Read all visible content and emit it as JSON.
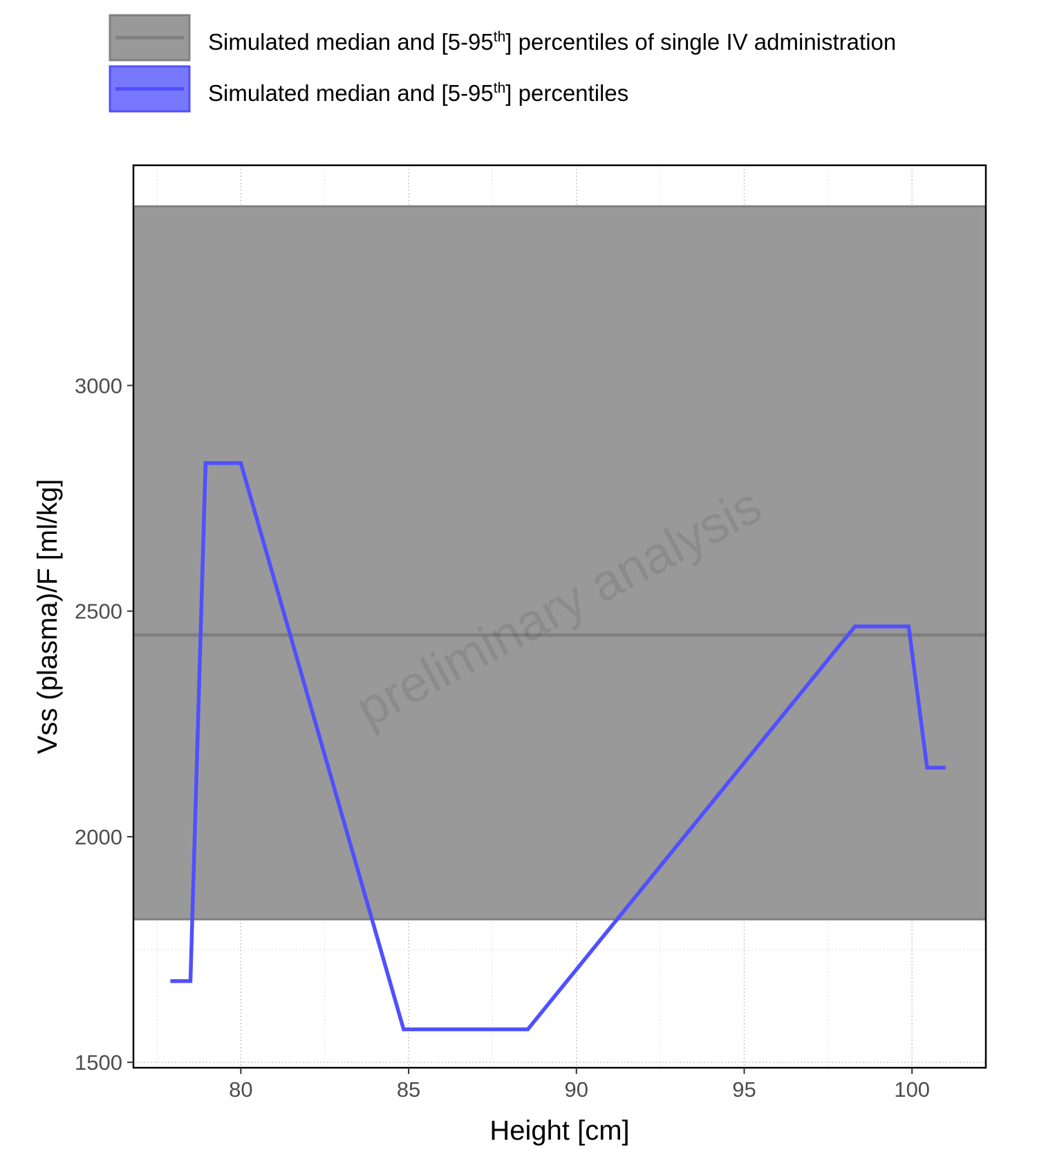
{
  "chart_data": {
    "type": "line",
    "xlabel": "Height [cm]",
    "ylabel": "Vss (plasma)/F [ml/kg]",
    "xlim": [
      76.8,
      102.2
    ],
    "ylim": [
      1488,
      3488
    ],
    "x_ticks": [
      80,
      85,
      90,
      95,
      100
    ],
    "y_ticks": [
      1500,
      2000,
      2500,
      3000
    ],
    "x_minor_ticks": [
      77.5,
      82.5,
      87.5,
      92.5,
      97.5
    ],
    "y_minor_ticks": [
      1750,
      2250,
      2750,
      3250
    ],
    "grid": true,
    "watermark": "preliminary analysis",
    "legend": {
      "placement": "top",
      "entries": [
        {
          "text_before": "Simulated median and [5-95",
          "superscript": "th",
          "text_after": "] percentiles of single IV administration",
          "color": "#808080",
          "fill": "#999999"
        },
        {
          "text_before": "Simulated median and [5-95",
          "superscript": "th",
          "text_after": "] percentiles",
          "color": "#5050ff",
          "fill": "#7878ff"
        }
      ]
    },
    "reference_band": {
      "series": "Simulated median and [5-95th] percentiles of single IV administration",
      "lower": 1817,
      "median": 2447,
      "upper": 3397,
      "color": "#808080",
      "fill": "#999999"
    },
    "series": [
      {
        "color": "#5050ff",
        "x": [
          77.9,
          78.5,
          78.95,
          80.0,
          84.85,
          88.55,
          98.3,
          99.9,
          100.45,
          101.0
        ],
        "y": [
          1680,
          1680,
          2828,
          2828,
          1573,
          1573,
          2466,
          2466,
          2153,
          2153
        ]
      }
    ]
  }
}
